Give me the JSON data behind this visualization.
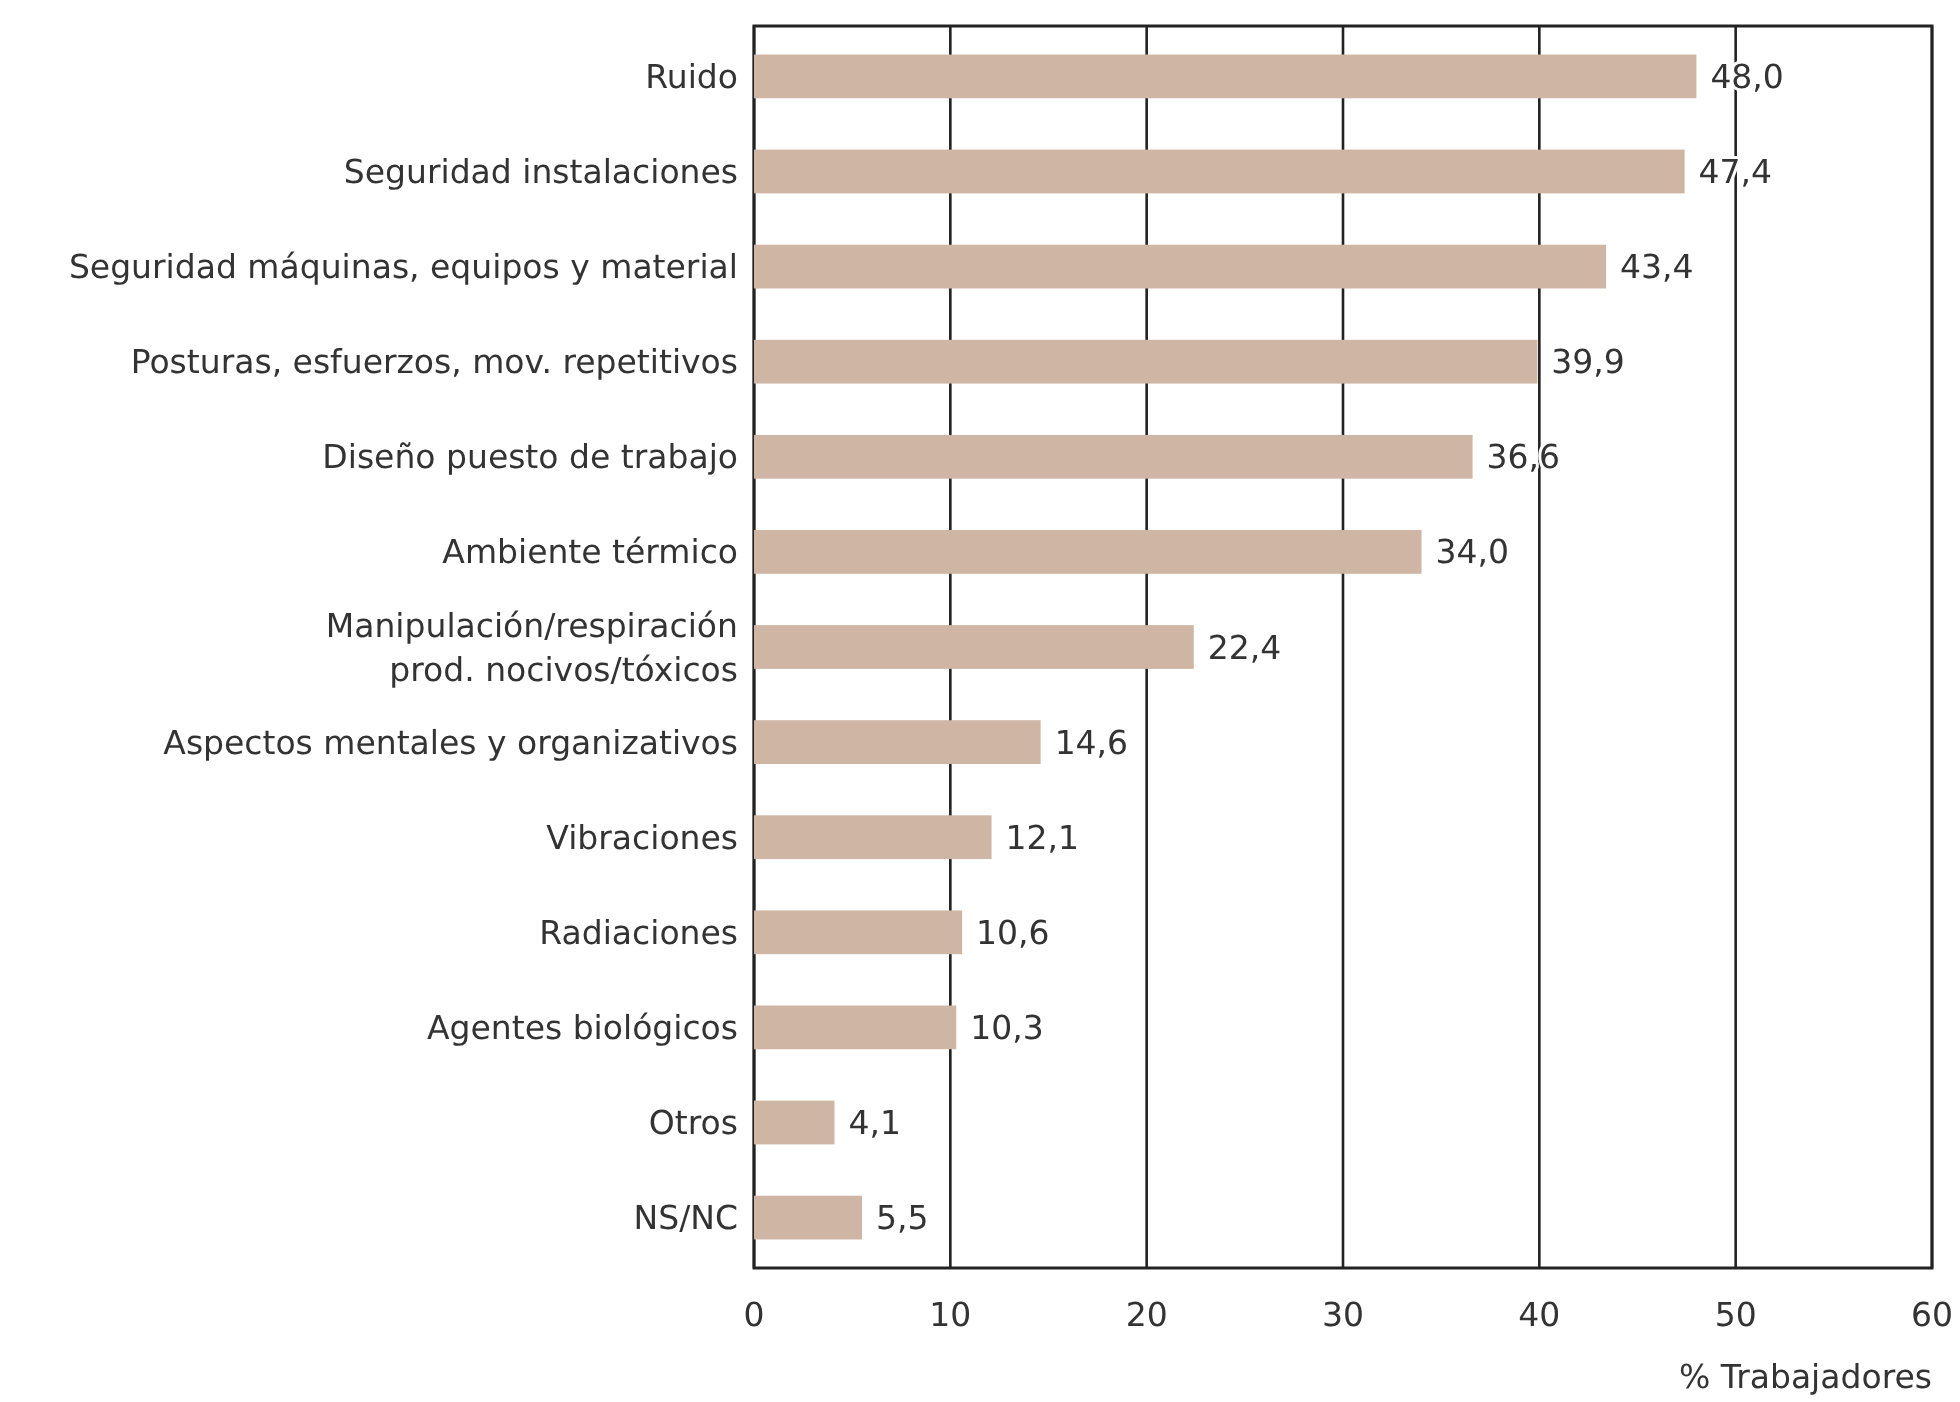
{
  "chart_data": {
    "type": "bar",
    "orientation": "horizontal",
    "categories": [
      "Ruido",
      "Seguridad instalaciones",
      "Seguridad máquinas, equipos y material",
      "Posturas, esfuerzos, mov. repetitivos",
      "Diseño puesto de trabajo",
      "Ambiente térmico",
      "Manipulación/respiración\nprod. nocivos/tóxicos",
      "Aspectos mentales y organizativos",
      "Vibraciones",
      "Radiaciones",
      "Agentes biológicos",
      "Otros",
      "NS/NC"
    ],
    "values": [
      48.0,
      47.4,
      43.4,
      39.9,
      36.6,
      34.0,
      22.4,
      14.6,
      12.1,
      10.6,
      10.3,
      4.1,
      5.5
    ],
    "value_labels": [
      "48,0",
      "47,4",
      "43,4",
      "39,9",
      "36,6",
      "34,0",
      "22,4",
      "14,6",
      "12,1",
      "10,6",
      "10,3",
      "4,1",
      "5,5"
    ],
    "color": "#cfb5a4",
    "xlabel": "% Trabajadores",
    "xlim": [
      0,
      60
    ],
    "xticks": [
      0,
      10,
      20,
      30,
      40,
      50,
      60
    ],
    "grid": "x"
  }
}
